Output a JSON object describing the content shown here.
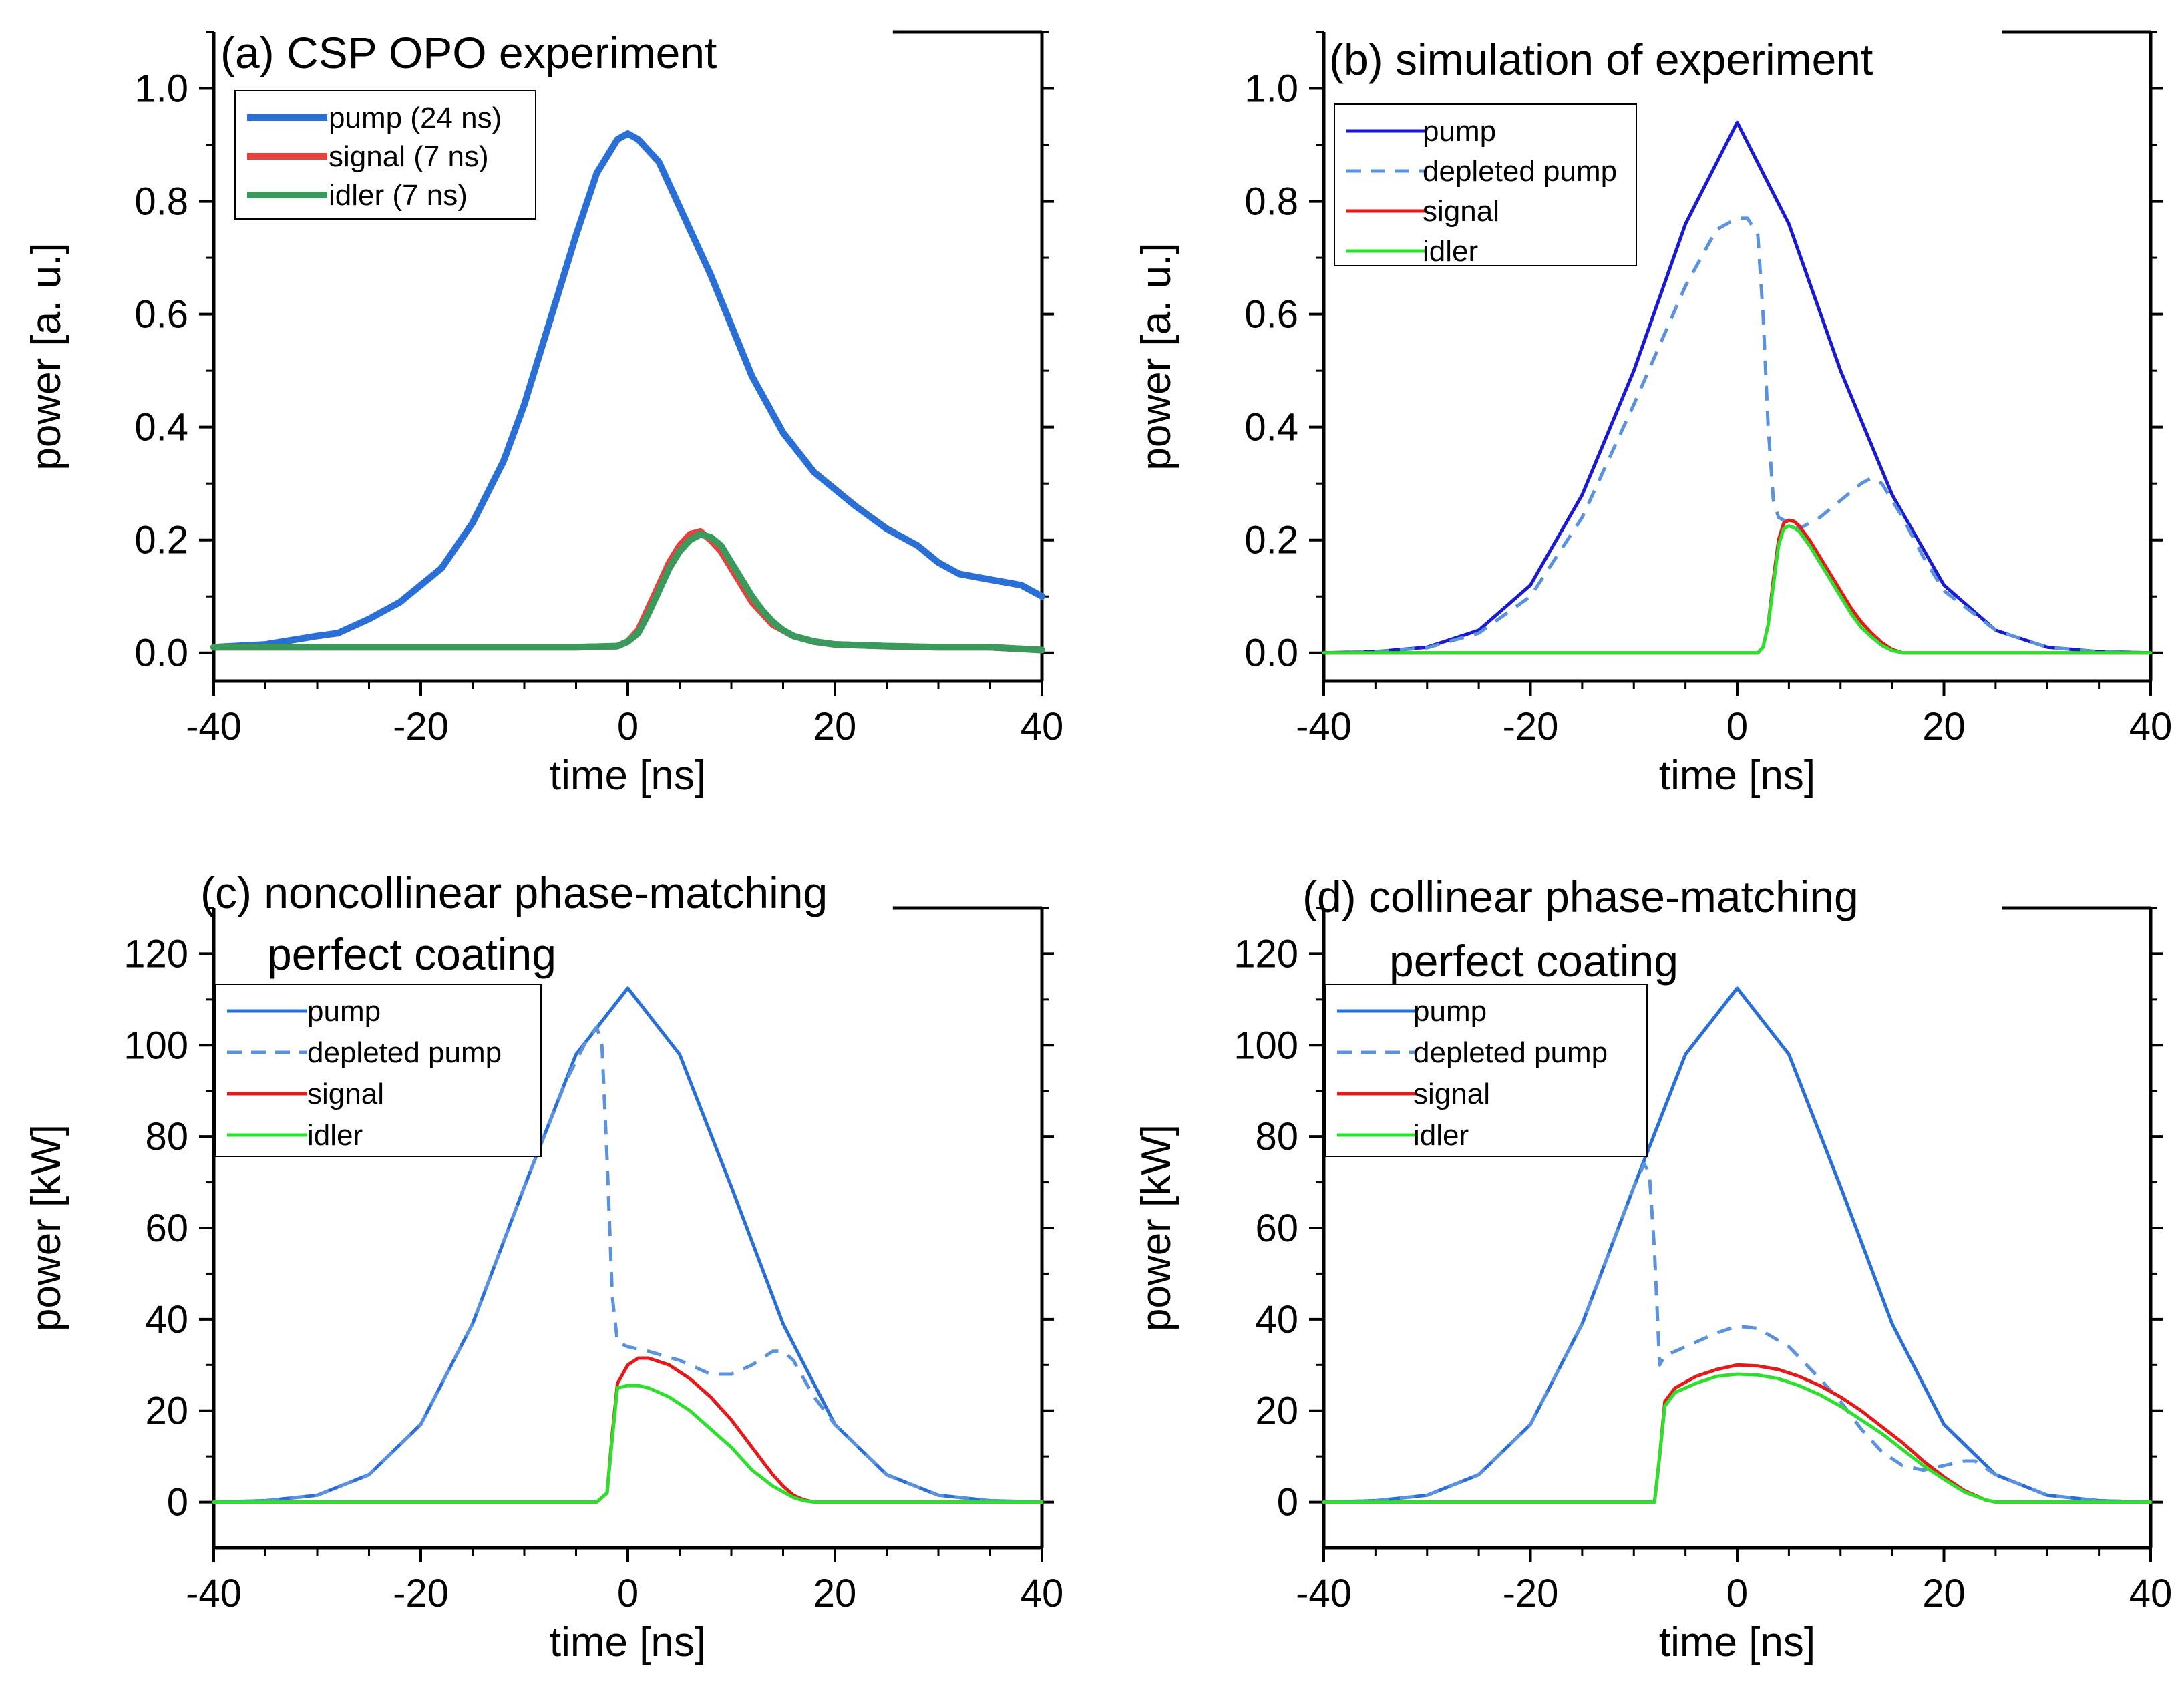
{
  "chart_data": [
    {
      "id": "a",
      "type": "line",
      "title": "(a) CSP OPO experiment",
      "subtitle": "",
      "xlabel": "time [ns]",
      "ylabel": "power [a. u.]",
      "xlim": [
        -40,
        40
      ],
      "ylim": [
        -0.05,
        1.1
      ],
      "xticks": [
        -40,
        -20,
        0,
        20,
        40
      ],
      "xtick_labels": [
        "-40",
        "-20",
        "0",
        "20",
        "40"
      ],
      "yticks": [
        0,
        0.2,
        0.4,
        0.6,
        0.8,
        1.0
      ],
      "ytick_labels": [
        "0.0",
        "0.2",
        "0.4",
        "0.6",
        "0.8",
        "1.0"
      ],
      "grid": false,
      "legend": "top-left",
      "series": [
        {
          "name": "pump (24 ns)",
          "color": "#2a6fd6",
          "style": "solid",
          "width": "thick",
          "x": [
            -40,
            -35,
            -30,
            -28,
            -25,
            -22,
            -20,
            -18,
            -15,
            -12,
            -10,
            -8,
            -5,
            -3,
            -1,
            0,
            1,
            3,
            5,
            8,
            10,
            12,
            15,
            18,
            20,
            22,
            25,
            28,
            30,
            32,
            35,
            38,
            40
          ],
          "y": [
            0.01,
            0.015,
            0.03,
            0.035,
            0.06,
            0.09,
            0.12,
            0.15,
            0.23,
            0.34,
            0.44,
            0.56,
            0.74,
            0.85,
            0.91,
            0.92,
            0.91,
            0.87,
            0.79,
            0.67,
            0.58,
            0.49,
            0.39,
            0.32,
            0.29,
            0.26,
            0.22,
            0.19,
            0.16,
            0.14,
            0.13,
            0.12,
            0.1
          ]
        },
        {
          "name": "signal (7 ns)",
          "color": "#e8403c",
          "style": "solid",
          "width": "thick",
          "x": [
            -40,
            -20,
            -5,
            -1,
            0,
            1,
            2,
            3,
            4,
            5,
            6,
            7,
            8,
            9,
            10,
            11,
            12,
            13,
            14,
            15,
            16,
            18,
            20,
            25,
            30,
            35,
            40
          ],
          "y": [
            0.01,
            0.01,
            0.01,
            0.012,
            0.02,
            0.04,
            0.08,
            0.12,
            0.16,
            0.19,
            0.21,
            0.215,
            0.2,
            0.18,
            0.15,
            0.12,
            0.09,
            0.07,
            0.05,
            0.04,
            0.03,
            0.02,
            0.015,
            0.012,
            0.01,
            0.01,
            0.005
          ]
        },
        {
          "name": "idler (7 ns)",
          "color": "#3a9a5c",
          "style": "solid",
          "width": "thick",
          "x": [
            -40,
            -20,
            -5,
            -1,
            0,
            1,
            2,
            3,
            4,
            5,
            6,
            7,
            8,
            9,
            10,
            11,
            12,
            13,
            14,
            15,
            16,
            18,
            20,
            25,
            30,
            35,
            40
          ],
          "y": [
            0.01,
            0.01,
            0.01,
            0.012,
            0.02,
            0.035,
            0.07,
            0.11,
            0.15,
            0.18,
            0.2,
            0.21,
            0.205,
            0.19,
            0.16,
            0.13,
            0.1,
            0.075,
            0.055,
            0.04,
            0.03,
            0.02,
            0.015,
            0.012,
            0.01,
            0.01,
            0.005
          ]
        }
      ]
    },
    {
      "id": "b",
      "type": "line",
      "title": "(b) simulation of experiment",
      "subtitle": "",
      "xlabel": "time [ns]",
      "ylabel": "power [a. u.]",
      "xlim": [
        -40,
        40
      ],
      "ylim": [
        -0.05,
        1.1
      ],
      "xticks": [
        -40,
        -20,
        0,
        20,
        40
      ],
      "xtick_labels": [
        "-40",
        "-20",
        "0",
        "20",
        "40"
      ],
      "yticks": [
        0,
        0.2,
        0.4,
        0.6,
        0.8,
        1.0
      ],
      "ytick_labels": [
        "0.0",
        "0.2",
        "0.4",
        "0.6",
        "0.8",
        "1.0"
      ],
      "grid": false,
      "legend": "top-left",
      "series": [
        {
          "name": "pump",
          "color": "#1a1ad0",
          "style": "solid",
          "width": "normal",
          "x": [
            -40,
            -35,
            -30,
            -25,
            -20,
            -15,
            -10,
            -5,
            0,
            5,
            10,
            15,
            20,
            25,
            30,
            35,
            40
          ],
          "y": [
            0,
            0.002,
            0.01,
            0.04,
            0.12,
            0.28,
            0.5,
            0.76,
            0.94,
            0.76,
            0.5,
            0.28,
            0.12,
            0.04,
            0.01,
            0.002,
            0
          ]
        },
        {
          "name": "depleted pump",
          "color": "#5a92de",
          "style": "dashed",
          "width": "normal",
          "x": [
            -40,
            -35,
            -30,
            -25,
            -20,
            -15,
            -10,
            -5,
            -2,
            0,
            1,
            2,
            2.5,
            3,
            3.5,
            4,
            5,
            6,
            8,
            10,
            12,
            13,
            14,
            16,
            18,
            20,
            25,
            30,
            35,
            40
          ],
          "y": [
            0,
            0.002,
            0.009,
            0.035,
            0.1,
            0.24,
            0.44,
            0.65,
            0.75,
            0.77,
            0.77,
            0.74,
            0.6,
            0.4,
            0.27,
            0.24,
            0.23,
            0.22,
            0.24,
            0.27,
            0.3,
            0.31,
            0.3,
            0.24,
            0.17,
            0.11,
            0.04,
            0.01,
            0.002,
            0
          ]
        },
        {
          "name": "signal",
          "color": "#e51a1a",
          "style": "solid",
          "width": "normal",
          "x": [
            -40,
            0,
            2,
            2.5,
            3,
            3.5,
            4,
            4.5,
            5,
            5.5,
            6,
            7,
            8,
            9,
            10,
            11,
            12,
            13,
            14,
            15,
            16,
            20,
            40
          ],
          "y": [
            0,
            0,
            0,
            0.01,
            0.05,
            0.13,
            0.2,
            0.23,
            0.235,
            0.233,
            0.225,
            0.2,
            0.17,
            0.14,
            0.11,
            0.08,
            0.055,
            0.035,
            0.018,
            0.006,
            0,
            0,
            0
          ]
        },
        {
          "name": "idler",
          "color": "#2ee02e",
          "style": "solid",
          "width": "normal",
          "x": [
            -40,
            0,
            2,
            2.5,
            3,
            3.5,
            4,
            4.5,
            5,
            5.5,
            6,
            7,
            8,
            9,
            10,
            11,
            12,
            13,
            14,
            15,
            16,
            20,
            40
          ],
          "y": [
            0,
            0,
            0,
            0.01,
            0.05,
            0.12,
            0.19,
            0.22,
            0.225,
            0.222,
            0.215,
            0.19,
            0.16,
            0.13,
            0.1,
            0.07,
            0.045,
            0.028,
            0.013,
            0.004,
            0,
            0,
            0
          ]
        }
      ]
    },
    {
      "id": "c",
      "type": "line",
      "title": "(c) noncollinear phase-matching",
      "subtitle": "perfect coating",
      "xlabel": "time [ns]",
      "ylabel": "power [kW]",
      "xlim": [
        -40,
        40
      ],
      "ylim": [
        -10,
        130
      ],
      "xticks": [
        -40,
        -20,
        0,
        20,
        40
      ],
      "xtick_labels": [
        "-40",
        "-20",
        "0",
        "20",
        "40"
      ],
      "yticks": [
        0,
        20,
        40,
        60,
        80,
        100,
        120
      ],
      "ytick_labels": [
        "0",
        "20",
        "40",
        "60",
        "80",
        "100",
        "120"
      ],
      "grid": false,
      "legend": "top-left",
      "series": [
        {
          "name": "pump",
          "color": "#2a6fd6",
          "style": "solid",
          "width": "normal",
          "x": [
            -40,
            -35,
            -30,
            -25,
            -20,
            -15,
            -10,
            -5,
            0,
            5,
            10,
            15,
            20,
            25,
            30,
            35,
            40
          ],
          "y": [
            0,
            0.3,
            1.5,
            6,
            17,
            39,
            69,
            98,
            112.5,
            98,
            69,
            39,
            17,
            6,
            1.5,
            0.3,
            0
          ]
        },
        {
          "name": "depleted pump",
          "color": "#5a92de",
          "style": "dashed",
          "width": "normal",
          "x": [
            -40,
            -35,
            -30,
            -25,
            -20,
            -15,
            -10,
            -6,
            -4,
            -3,
            -2.5,
            -2,
            -1.5,
            -1,
            0,
            2,
            5,
            8,
            10,
            12,
            14,
            15,
            16,
            18,
            20,
            25,
            30,
            35,
            40
          ],
          "y": [
            0,
            0.3,
            1.5,
            6,
            17,
            39,
            69,
            92,
            101,
            104,
            100,
            75,
            45,
            35,
            34,
            33,
            31,
            28,
            28,
            30,
            33,
            33,
            31,
            23,
            17,
            6,
            1.5,
            0.3,
            0
          ]
        },
        {
          "name": "signal",
          "color": "#e51a1a",
          "style": "solid",
          "width": "normal",
          "x": [
            -40,
            -3,
            -2,
            -1.5,
            -1,
            0,
            1,
            2,
            4,
            6,
            8,
            10,
            12,
            14,
            15,
            16,
            17,
            18,
            40
          ],
          "y": [
            0,
            0,
            2,
            15,
            26,
            30,
            31.5,
            31.5,
            30,
            27,
            23,
            18,
            12,
            6,
            3.5,
            1.5,
            0.5,
            0,
            0
          ]
        },
        {
          "name": "idler",
          "color": "#2ee02e",
          "style": "solid",
          "width": "normal",
          "x": [
            -40,
            -3,
            -2,
            -1.5,
            -1,
            0,
            1,
            2,
            4,
            6,
            8,
            10,
            12,
            14,
            16,
            17,
            18,
            40
          ],
          "y": [
            0,
            0,
            2,
            14,
            25,
            25.5,
            25.5,
            25,
            23,
            20,
            16,
            12,
            7,
            3.5,
            1,
            0.3,
            0,
            0
          ]
        }
      ]
    },
    {
      "id": "d",
      "type": "line",
      "title": "(d) collinear phase-matching",
      "subtitle": "perfect coating",
      "xlabel": "time [ns]",
      "ylabel": "power [kW]",
      "xlim": [
        -40,
        40
      ],
      "ylim": [
        -10,
        130
      ],
      "xticks": [
        -40,
        -20,
        0,
        20,
        40
      ],
      "xtick_labels": [
        "-40",
        "-20",
        "0",
        "20",
        "40"
      ],
      "yticks": [
        0,
        20,
        40,
        60,
        80,
        100,
        120
      ],
      "ytick_labels": [
        "0",
        "20",
        "40",
        "60",
        "80",
        "100",
        "120"
      ],
      "grid": false,
      "legend": "top-left",
      "series": [
        {
          "name": "pump",
          "color": "#2a6fd6",
          "style": "solid",
          "width": "normal",
          "x": [
            -40,
            -35,
            -30,
            -25,
            -20,
            -15,
            -10,
            -5,
            0,
            5,
            10,
            15,
            20,
            25,
            30,
            35,
            40
          ],
          "y": [
            0,
            0.3,
            1.5,
            6,
            17,
            39,
            69,
            98,
            112.5,
            98,
            69,
            39,
            17,
            6,
            1.5,
            0.3,
            0
          ]
        },
        {
          "name": "depleted pump",
          "color": "#5a92de",
          "style": "dashed",
          "width": "normal",
          "x": [
            -40,
            -35,
            -30,
            -25,
            -20,
            -15,
            -10,
            -9,
            -8.5,
            -8,
            -7.5,
            -7,
            -6,
            -4,
            -2,
            0,
            2,
            5,
            8,
            10,
            12,
            14,
            16,
            18,
            20,
            22,
            23,
            25,
            30,
            35,
            40
          ],
          "y": [
            0,
            0.3,
            1.5,
            6,
            17,
            39,
            69,
            74,
            72,
            55,
            30,
            32,
            33,
            35,
            37,
            38.5,
            38,
            34,
            27,
            22,
            16,
            11,
            8,
            7,
            8,
            9,
            9,
            6,
            1.5,
            0.3,
            0
          ]
        },
        {
          "name": "signal",
          "color": "#e51a1a",
          "style": "solid",
          "width": "normal",
          "x": [
            -40,
            -8,
            -7.5,
            -7,
            -6,
            -4,
            -2,
            0,
            2,
            4,
            6,
            8,
            10,
            12,
            14,
            16,
            18,
            20,
            22,
            24,
            25,
            26,
            40
          ],
          "y": [
            0,
            0,
            10,
            22,
            25,
            27.5,
            29,
            30,
            29.8,
            29,
            27.5,
            25.5,
            23,
            20,
            16.5,
            13,
            9,
            5.5,
            2.5,
            0.5,
            0,
            0,
            0
          ]
        },
        {
          "name": "idler",
          "color": "#2ee02e",
          "style": "solid",
          "width": "normal",
          "x": [
            -40,
            -8,
            -7.5,
            -7,
            -6,
            -4,
            -2,
            0,
            2,
            4,
            6,
            8,
            10,
            12,
            14,
            16,
            18,
            20,
            22,
            24,
            25,
            26,
            40
          ],
          "y": [
            0,
            0,
            10,
            21,
            24,
            26,
            27.5,
            28,
            27.8,
            27,
            25.5,
            23.5,
            21,
            18,
            15,
            11.5,
            8,
            5,
            2.2,
            0.5,
            0,
            0,
            0
          ]
        }
      ]
    }
  ]
}
